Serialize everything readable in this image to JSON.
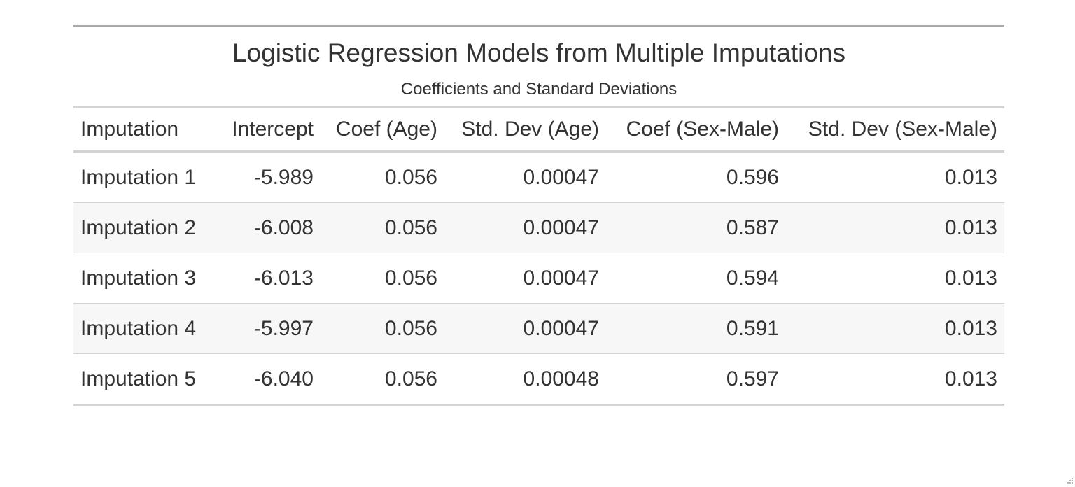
{
  "chart_data": {
    "type": "table",
    "title": "Logistic Regression Models from Multiple Imputations",
    "subtitle": "Coefficients and Standard Deviations",
    "columns": [
      "Imputation",
      "Intercept",
      "Coef (Age)",
      "Std. Dev (Age)",
      "Coef (Sex-Male)",
      "Std. Dev (Sex-Male)"
    ],
    "rows": [
      [
        "Imputation 1",
        "-5.989",
        "0.056",
        "0.00047",
        "0.596",
        "0.013"
      ],
      [
        "Imputation 2",
        "-6.008",
        "0.056",
        "0.00047",
        "0.587",
        "0.013"
      ],
      [
        "Imputation 3",
        "-6.013",
        "0.056",
        "0.00047",
        "0.594",
        "0.013"
      ],
      [
        "Imputation 4",
        "-5.997",
        "0.056",
        "0.00047",
        "0.591",
        "0.013"
      ],
      [
        "Imputation 5",
        "-6.040",
        "0.056",
        "0.00048",
        "0.597",
        "0.013"
      ]
    ],
    "striped_rows": true,
    "colors": {
      "text": "#333333",
      "top_rule": "#a8a8a8",
      "rule": "#d3d3d3",
      "stripe": "#f7f7f7"
    }
  }
}
